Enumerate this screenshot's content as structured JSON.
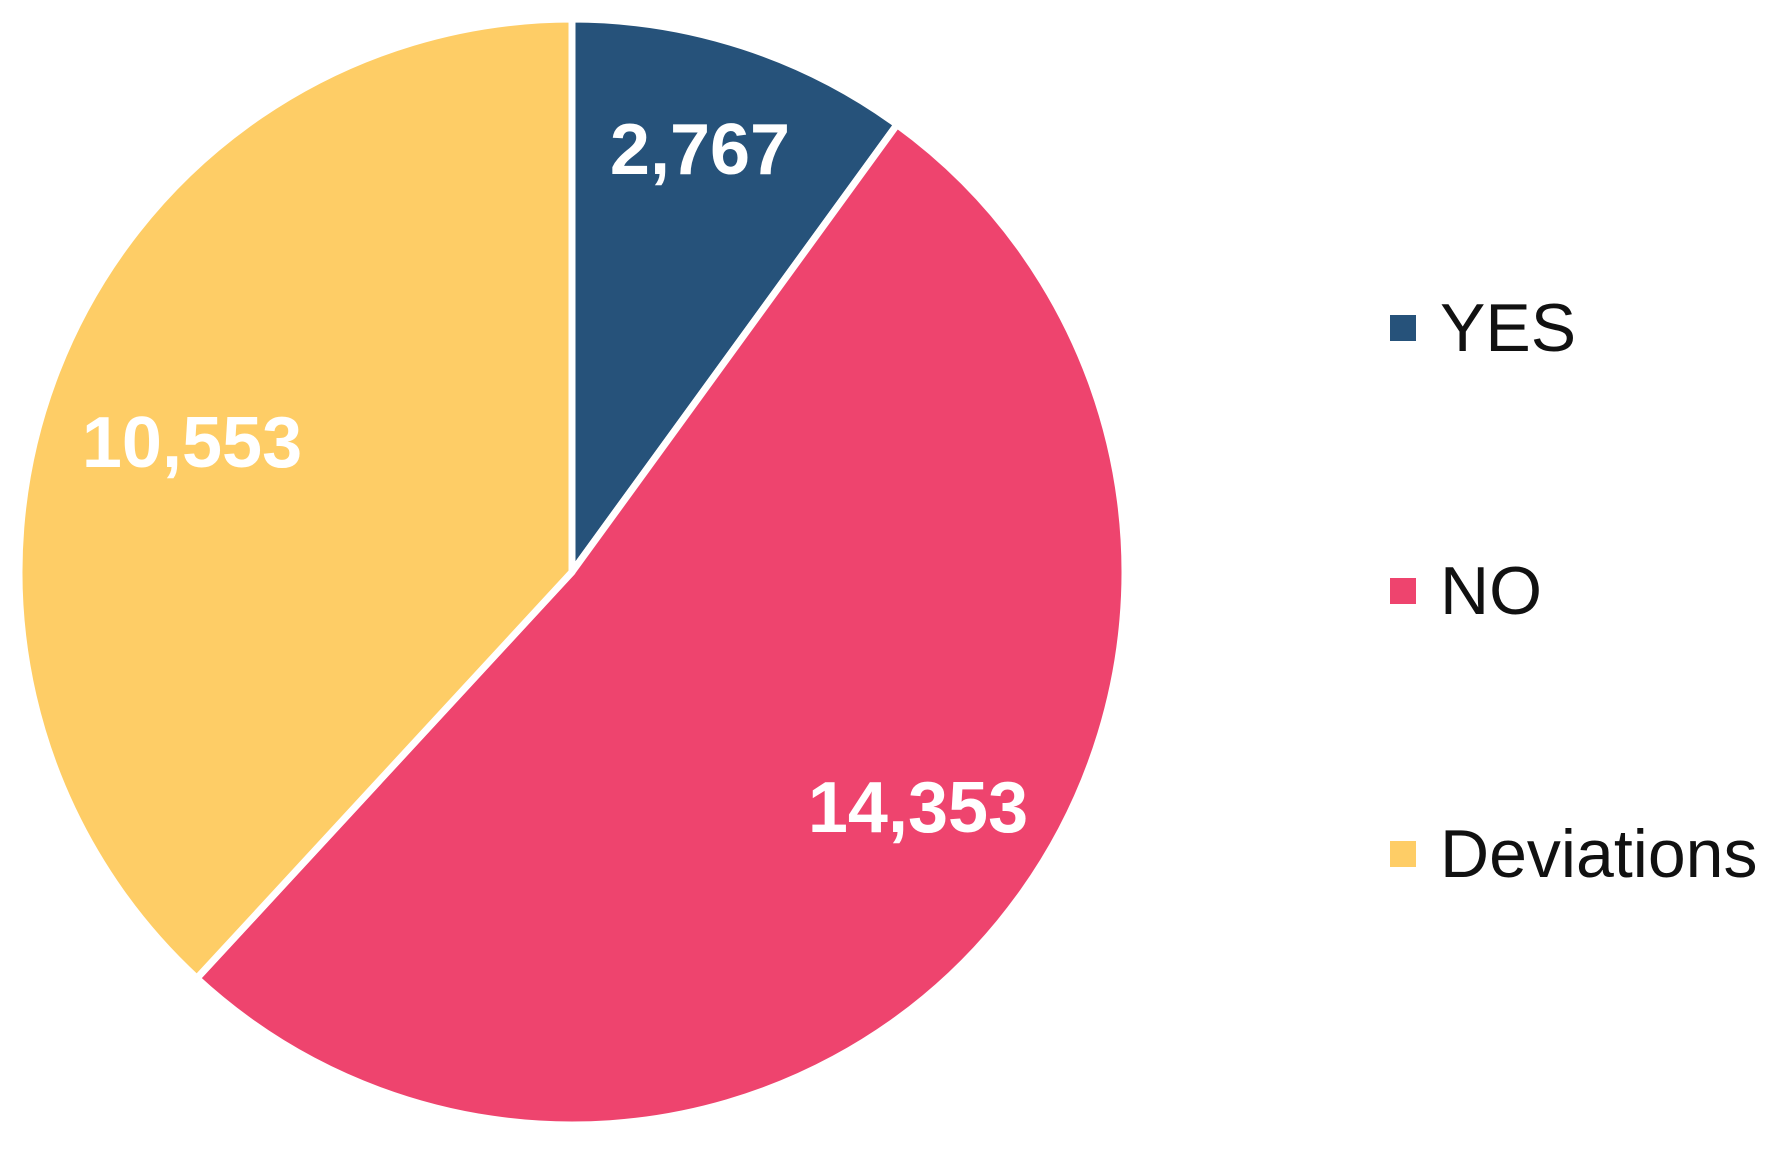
{
  "chart_data": {
    "type": "pie",
    "title": "",
    "start_angle_deg": 0,
    "direction": "clockwise",
    "legend_position": "right",
    "slices": [
      {
        "name": "YES",
        "value": 2767,
        "label": "2,767",
        "color": "#26527a"
      },
      {
        "name": "NO",
        "value": 14353,
        "label": "14,353",
        "color": "#ee446e"
      },
      {
        "name": "Deviations",
        "value": 10553,
        "label": "10,553",
        "color": "#fecd66"
      }
    ]
  }
}
